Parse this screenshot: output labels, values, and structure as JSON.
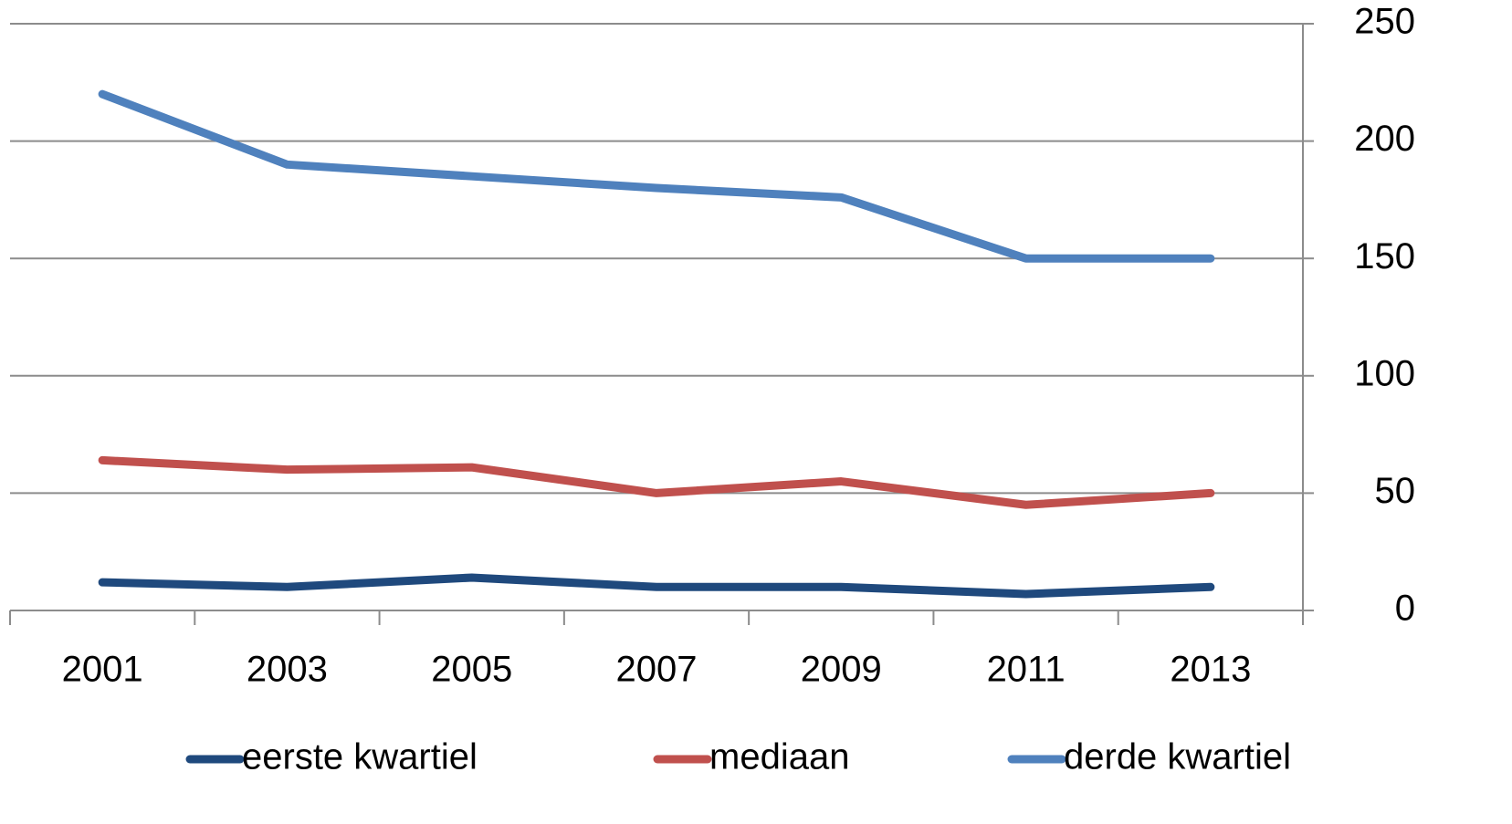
{
  "chart_data": {
    "type": "line",
    "categories": [
      "2001",
      "2003",
      "2005",
      "2007",
      "2009",
      "2011",
      "2013"
    ],
    "series": [
      {
        "name": "eerste kwartiel",
        "color": "#1f497d",
        "values": [
          12,
          10,
          14,
          10,
          10,
          7,
          10
        ]
      },
      {
        "name": "mediaan",
        "color": "#c0504d",
        "values": [
          64,
          60,
          61,
          50,
          55,
          45,
          50
        ]
      },
      {
        "name": "derde kwartiel",
        "color": "#4f81bd",
        "values": [
          220,
          190,
          185,
          180,
          176,
          150,
          150
        ]
      }
    ],
    "ylim": [
      0,
      250
    ],
    "yticks": [
      0,
      50,
      100,
      150,
      200,
      250
    ],
    "grid": true,
    "legend": "bottom"
  }
}
